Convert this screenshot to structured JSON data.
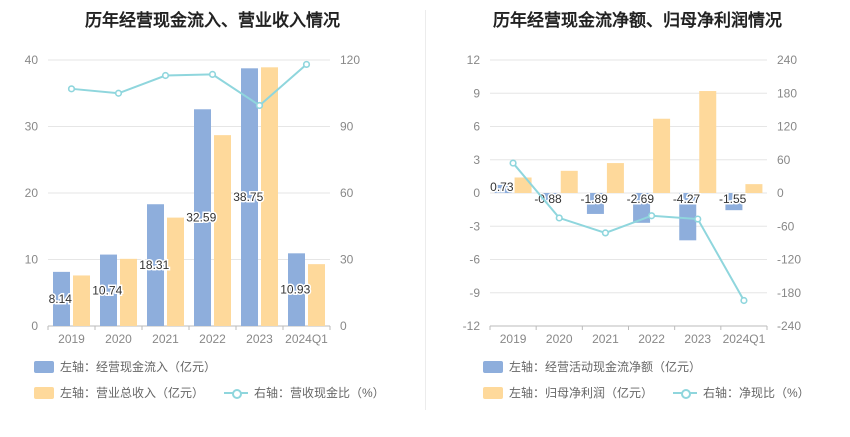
{
  "left": {
    "title": "历年经营现金流入、营业收入情况",
    "legend": [
      {
        "label": "左轴：经营现金流入（亿元）",
        "color": "#8eaedc",
        "kind": "bar"
      },
      {
        "label": "左轴：营业总收入（亿元）",
        "color": "#fed99b",
        "kind": "bar"
      },
      {
        "label": "右轴：营收现金比（%）",
        "color": "#8fd6dd",
        "kind": "line"
      }
    ]
  },
  "right": {
    "title": "历年经营现金流净额、归母净利润情况",
    "legend": [
      {
        "label": "左轴：经营活动现金流净额（亿元）",
        "color": "#8eaedc",
        "kind": "bar"
      },
      {
        "label": "左轴：归母净利润（亿元）",
        "color": "#fed99b",
        "kind": "bar"
      },
      {
        "label": "右轴：净现比（%）",
        "color": "#8fd6dd",
        "kind": "line"
      }
    ]
  },
  "chart_data": [
    {
      "type": "bar",
      "title": "历年经营现金流入、营业收入情况",
      "categories": [
        "2019",
        "2020",
        "2021",
        "2022",
        "2023",
        "2024Q1"
      ],
      "ylim_left": [
        0,
        40
      ],
      "yticks_left": [
        0,
        10,
        20,
        30,
        40
      ],
      "ylim_right": [
        0,
        120
      ],
      "yticks_right": [
        0,
        30,
        60,
        90,
        120
      ],
      "grid": true,
      "series": [
        {
          "name": "经营现金流入（亿元）",
          "axis": "left",
          "type": "bar",
          "color": "#8eaedc",
          "values": [
            8.14,
            10.74,
            18.31,
            32.59,
            38.75,
            10.93
          ],
          "labels": [
            "8.14",
            "10.74",
            "18.31",
            "32.59",
            "38.75",
            "10.93"
          ]
        },
        {
          "name": "营业总收入（亿元）",
          "axis": "left",
          "type": "bar",
          "color": "#fed99b",
          "values": [
            7.6,
            10.1,
            16.3,
            28.7,
            38.9,
            9.3
          ]
        },
        {
          "name": "营收现金比（%）",
          "axis": "right",
          "type": "line",
          "color": "#8fd6dd",
          "values": [
            107,
            105,
            113,
            113.5,
            99.5,
            118
          ]
        }
      ]
    },
    {
      "type": "bar",
      "title": "历年经营现金流净额、归母净利润情况",
      "categories": [
        "2019",
        "2020",
        "2021",
        "2022",
        "2023",
        "2024Q1"
      ],
      "ylim_left": [
        -12,
        12
      ],
      "yticks_left": [
        -12,
        -9,
        -6,
        -3,
        0,
        3,
        6,
        9,
        12
      ],
      "ylim_right": [
        -240,
        240
      ],
      "yticks_right": [
        -240,
        -180,
        -120,
        -60,
        0,
        60,
        120,
        180,
        240
      ],
      "grid": true,
      "series": [
        {
          "name": "经营活动现金流净额（亿元）",
          "axis": "left",
          "type": "bar",
          "color": "#8eaedc",
          "values": [
            0.73,
            -0.88,
            -1.89,
            -2.69,
            -4.27,
            -1.55
          ],
          "labels": [
            "0.73",
            "-0.88",
            "-1.89",
            "-2.69",
            "-4.27",
            "-1.55"
          ]
        },
        {
          "name": "归母净利润（亿元）",
          "axis": "left",
          "type": "bar",
          "color": "#fed99b",
          "values": [
            1.4,
            2.0,
            2.7,
            6.7,
            9.2,
            0.8
          ]
        },
        {
          "name": "净现比（%）",
          "axis": "right",
          "type": "line",
          "color": "#8fd6dd",
          "values": [
            54,
            -45,
            -72,
            -41,
            -47,
            -194
          ]
        }
      ]
    }
  ]
}
